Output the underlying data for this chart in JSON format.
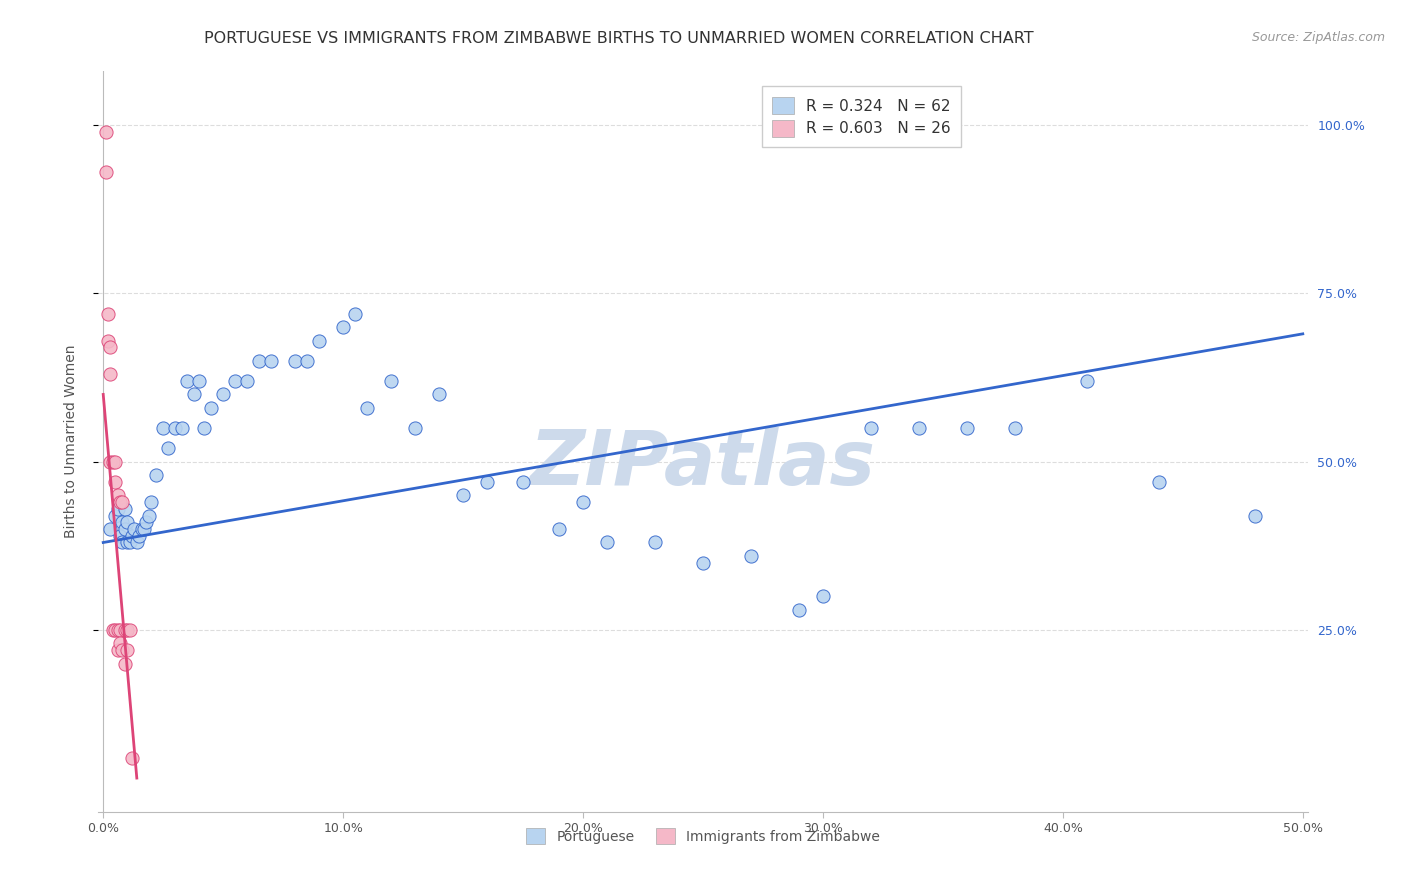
{
  "title": "PORTUGUESE VS IMMIGRANTS FROM ZIMBABWE BIRTHS TO UNMARRIED WOMEN CORRELATION CHART",
  "source": "Source: ZipAtlas.com",
  "ylabel": "Births to Unmarried Women",
  "watermark": "ZIPatlas",
  "legend_blue_r": "R = 0.324",
  "legend_blue_n": "N = 62",
  "legend_pink_r": "R = 0.603",
  "legend_pink_n": "N = 26",
  "xmin": -0.002,
  "xmax": 0.502,
  "ymin": -0.02,
  "ymax": 1.08,
  "xtick_labels": [
    "0.0%",
    "10.0%",
    "20.0%",
    "30.0%",
    "40.0%",
    "50.0%"
  ],
  "xtick_vals": [
    0.0,
    0.1,
    0.2,
    0.3,
    0.4,
    0.5
  ],
  "ytick_labels": [
    "25.0%",
    "50.0%",
    "75.0%",
    "100.0%"
  ],
  "ytick_vals": [
    0.25,
    0.5,
    0.75,
    1.0
  ],
  "blue_scatter_x": [
    0.003,
    0.005,
    0.006,
    0.007,
    0.008,
    0.008,
    0.009,
    0.009,
    0.01,
    0.01,
    0.011,
    0.012,
    0.013,
    0.014,
    0.015,
    0.016,
    0.017,
    0.018,
    0.019,
    0.02,
    0.022,
    0.025,
    0.027,
    0.03,
    0.033,
    0.035,
    0.038,
    0.04,
    0.042,
    0.045,
    0.05,
    0.055,
    0.06,
    0.065,
    0.07,
    0.08,
    0.085,
    0.09,
    0.1,
    0.105,
    0.11,
    0.12,
    0.13,
    0.14,
    0.15,
    0.16,
    0.175,
    0.19,
    0.2,
    0.21,
    0.23,
    0.25,
    0.27,
    0.29,
    0.3,
    0.32,
    0.34,
    0.36,
    0.38,
    0.41,
    0.44,
    0.48
  ],
  "blue_scatter_y": [
    0.4,
    0.42,
    0.43,
    0.39,
    0.41,
    0.38,
    0.4,
    0.43,
    0.41,
    0.38,
    0.38,
    0.39,
    0.4,
    0.38,
    0.39,
    0.4,
    0.4,
    0.41,
    0.42,
    0.44,
    0.48,
    0.55,
    0.52,
    0.55,
    0.55,
    0.62,
    0.6,
    0.62,
    0.55,
    0.58,
    0.6,
    0.62,
    0.62,
    0.65,
    0.65,
    0.65,
    0.65,
    0.68,
    0.7,
    0.72,
    0.58,
    0.62,
    0.55,
    0.6,
    0.45,
    0.47,
    0.47,
    0.4,
    0.44,
    0.38,
    0.38,
    0.35,
    0.36,
    0.28,
    0.3,
    0.55,
    0.55,
    0.55,
    0.55,
    0.62,
    0.47,
    0.42
  ],
  "pink_scatter_x": [
    0.001,
    0.001,
    0.002,
    0.002,
    0.003,
    0.003,
    0.003,
    0.004,
    0.004,
    0.005,
    0.005,
    0.005,
    0.006,
    0.006,
    0.006,
    0.007,
    0.007,
    0.007,
    0.008,
    0.008,
    0.009,
    0.009,
    0.01,
    0.01,
    0.011,
    0.012
  ],
  "pink_scatter_y": [
    0.99,
    0.93,
    0.72,
    0.68,
    0.67,
    0.63,
    0.5,
    0.5,
    0.25,
    0.5,
    0.47,
    0.25,
    0.45,
    0.25,
    0.22,
    0.44,
    0.25,
    0.23,
    0.44,
    0.22,
    0.25,
    0.2,
    0.25,
    0.22,
    0.25,
    0.06
  ],
  "blue_line_x": [
    0.0,
    0.5
  ],
  "blue_line_y": [
    0.38,
    0.69
  ],
  "pink_line_x": [
    0.0,
    0.014
  ],
  "pink_line_y": [
    0.6,
    0.03
  ],
  "blue_scatter_color": "#b8d4f0",
  "pink_scatter_color": "#f5b8c8",
  "blue_line_color": "#3366cc",
  "pink_line_color": "#dd4477",
  "legend_box_blue": "#b8d4f0",
  "legend_box_pink": "#f5b8c8",
  "grid_color": "#dddddd",
  "background_color": "#ffffff",
  "watermark_color": "#cddaeb",
  "title_fontsize": 11.5,
  "axis_label_fontsize": 10,
  "tick_fontsize": 9,
  "legend_fontsize": 11,
  "source_fontsize": 9
}
